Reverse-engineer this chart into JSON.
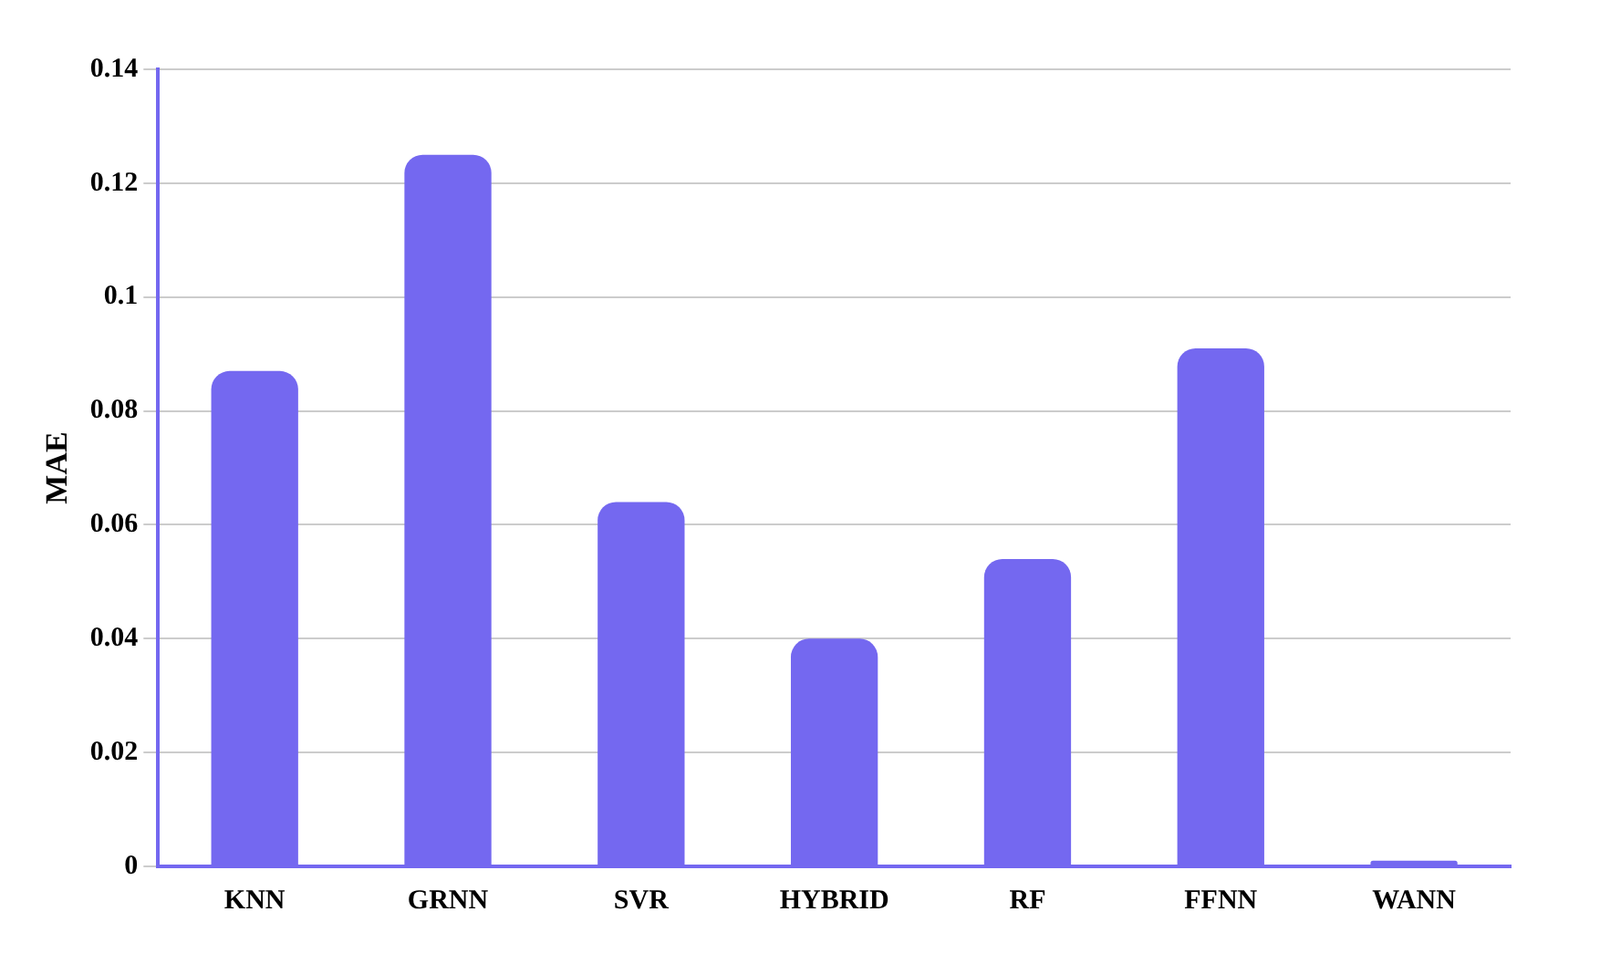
{
  "chart_data": {
    "type": "bar",
    "ylabel": "MAE",
    "categories": [
      "KNN",
      "GRNN",
      "SVR",
      "HYBRID",
      "RF",
      "FFNN",
      "WANN"
    ],
    "values": [
      0.087,
      0.125,
      0.064,
      0.04,
      0.054,
      0.091,
      0.001
    ],
    "color": "#7468f0",
    "ylim": [
      0,
      0.14
    ],
    "yticks": [
      0,
      0.02,
      0.04,
      0.06,
      0.08,
      0.1,
      0.12,
      0.14
    ],
    "grid": "y"
  }
}
